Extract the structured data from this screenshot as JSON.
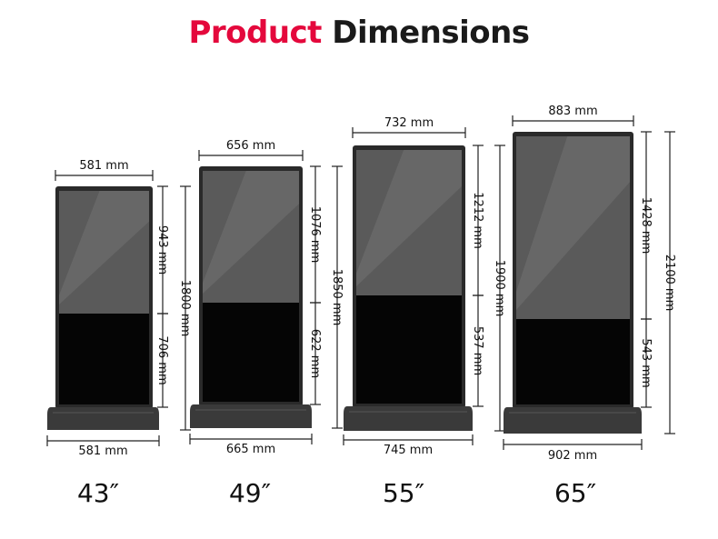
{
  "title": {
    "accent": "Product",
    "rest": "Dimensions"
  },
  "colors": {
    "accent": "#e4083c",
    "body": "#2a2a2a",
    "screen_top": "#5a5a5a",
    "screen_bottom": "#050505"
  },
  "products": [
    {
      "size": "43″",
      "screen_width": "581  mm",
      "base_width": "581 mm",
      "upper_height": "943 mm",
      "lower_height": "706 mm",
      "total_height": "1800 mm"
    },
    {
      "size": "49″",
      "screen_width": "656 mm",
      "base_width": "665 mm",
      "upper_height": "1076 mm",
      "lower_height": "622 mm",
      "total_height": "1850 mm"
    },
    {
      "size": "55″",
      "screen_width": "732 mm",
      "base_width": "745 mm",
      "upper_height": "1212 mm",
      "lower_height": "537 mm",
      "total_height": "1900 mm"
    },
    {
      "size": "65″",
      "screen_width": "883 mm",
      "base_width": "902 mm",
      "upper_height": "1428 mm",
      "lower_height": "543 mm",
      "total_height": "2100 mm"
    }
  ]
}
